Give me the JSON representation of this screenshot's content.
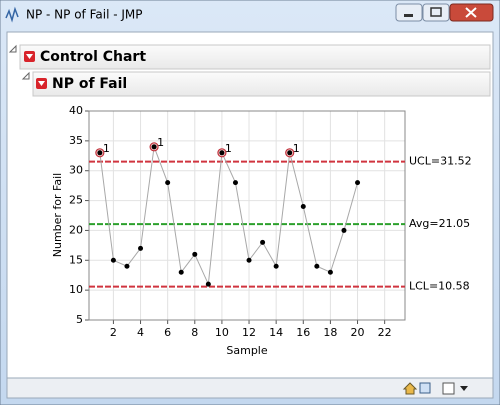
{
  "window": {
    "title": "NP - NP of Fail - JMP"
  },
  "outline": {
    "title": "Control Chart",
    "subtitle": "NP of Fail"
  },
  "chart_data": {
    "type": "line",
    "x_label": "Sample",
    "y_label": "Number for Fail",
    "x": [
      1,
      2,
      3,
      4,
      5,
      6,
      7,
      8,
      9,
      10,
      11,
      12,
      13,
      14,
      15,
      16,
      17,
      18,
      19,
      20
    ],
    "values": [
      33,
      15,
      14,
      17,
      34,
      28,
      13,
      16,
      11,
      33,
      28,
      15,
      18,
      14,
      33,
      24,
      14,
      13,
      20,
      28
    ],
    "point_labels": [
      "1",
      null,
      null,
      null,
      "1",
      null,
      null,
      null,
      null,
      "1",
      null,
      null,
      null,
      null,
      "1",
      null,
      null,
      null,
      null,
      null
    ],
    "color": "#000000",
    "line_color": "#a8a8a8",
    "flag_color": "#c0303a",
    "xlim": [
      0.2,
      23.5
    ],
    "xticks": [
      2,
      4,
      6,
      8,
      10,
      12,
      14,
      16,
      18,
      20,
      22
    ],
    "ylim": [
      5,
      40
    ],
    "yticks": [
      5,
      10,
      15,
      20,
      25,
      30,
      35,
      40
    ],
    "grid": true,
    "limits": [
      {
        "value": 31.52,
        "label": "UCL=31.52",
        "color": "#d0343f"
      },
      {
        "value": 21.05,
        "label": "Avg=21.05",
        "color": "#2ca02c"
      },
      {
        "value": 10.58,
        "label": "LCL=10.58",
        "color": "#d0343f"
      }
    ]
  }
}
